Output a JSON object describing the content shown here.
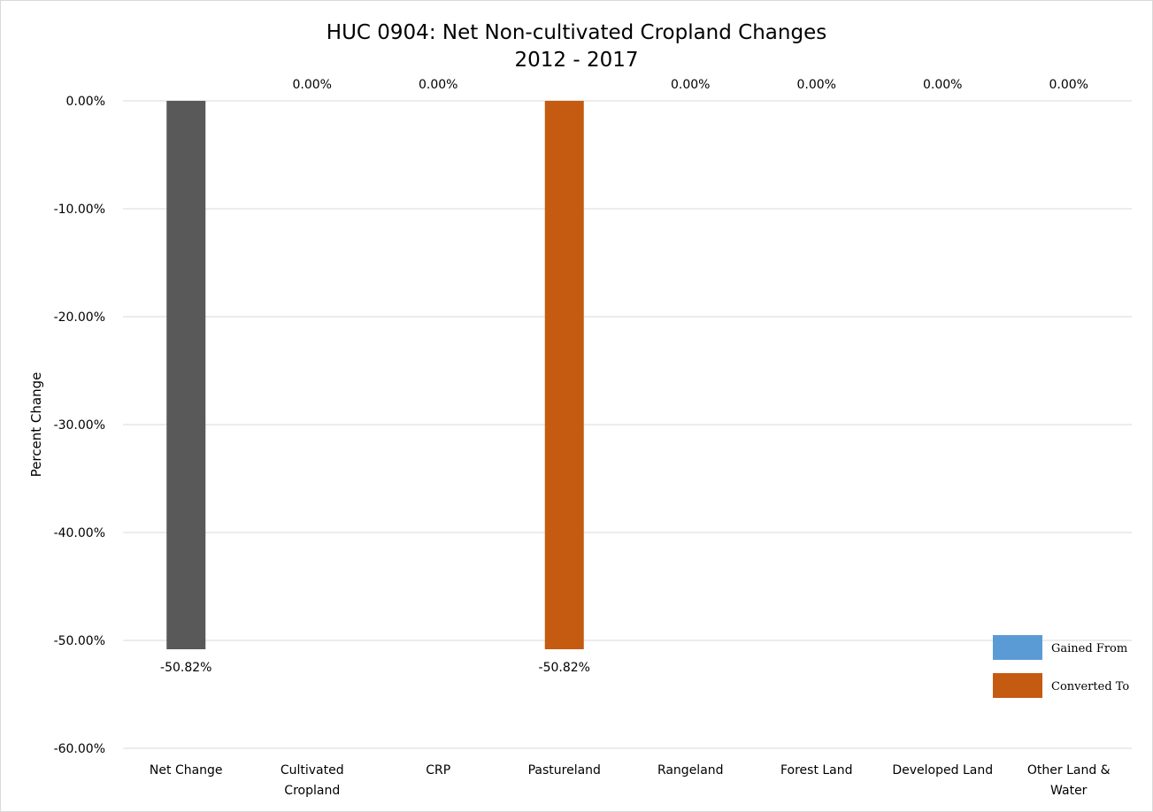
{
  "chart_data": {
    "type": "bar",
    "title": "HUC 0904: Net Non-cultivated Cropland Changes",
    "subtitle": "2012 - 2017",
    "xlabel": "",
    "ylabel": "Percent Change",
    "ylim": [
      -60,
      0
    ],
    "yticks": [
      0,
      -10,
      -20,
      -30,
      -40,
      -50,
      -60
    ],
    "ytick_labels": [
      "0.00%",
      "-10.00%",
      "-20.00%",
      "-30.00%",
      "-40.00%",
      "-50.00%",
      "-60.00%"
    ],
    "grid": true,
    "legend_position": "bottom-right",
    "categories": [
      [
        "Net Change"
      ],
      [
        "Cultivated",
        "Cropland"
      ],
      [
        "CRP"
      ],
      [
        "Pastureland"
      ],
      [
        "Rangeland"
      ],
      [
        "Forest Land"
      ],
      [
        "Developed Land"
      ],
      [
        "Other Land &",
        "Water"
      ]
    ],
    "values": [
      -50.82,
      0,
      0,
      -50.82,
      0,
      0,
      0,
      0
    ],
    "value_labels": [
      "-50.82%",
      "0.00%",
      "0.00%",
      "-50.82%",
      "0.00%",
      "0.00%",
      "0.00%",
      "0.00%"
    ],
    "bar_colors": [
      "#595959",
      "#5b9bd5",
      "#5b9bd5",
      "#c55a11",
      "#c55a11",
      "#c55a11",
      "#c55a11",
      "#c55a11"
    ],
    "series": [
      {
        "name": "Gained From",
        "color": "#5b9bd5"
      },
      {
        "name": "Converted To",
        "color": "#c55a11"
      }
    ]
  }
}
